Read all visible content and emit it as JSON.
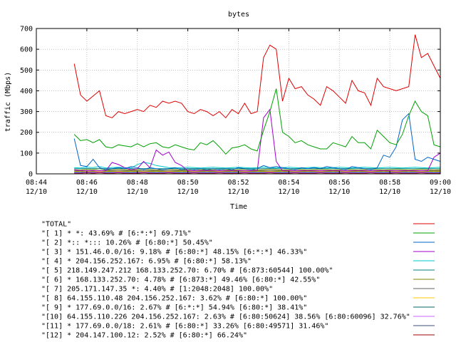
{
  "chart_data": {
    "type": "line",
    "title": "bytes",
    "xlabel": "Time",
    "ylabel": "traffic (Mbps)",
    "ylim": [
      0,
      700
    ],
    "yticks": [
      0,
      100,
      200,
      300,
      400,
      500,
      600,
      700
    ],
    "xlim": [
      "08:44",
      "09:00"
    ],
    "xticks": [
      {
        "time": "08:44",
        "date": "12/10"
      },
      {
        "time": "08:46",
        "date": "12/10"
      },
      {
        "time": "08:48",
        "date": "12/10"
      },
      {
        "time": "08:50",
        "date": "12/10"
      },
      {
        "time": "08:52",
        "date": "12/10"
      },
      {
        "time": "08:54",
        "date": "12/10"
      },
      {
        "time": "08:56",
        "date": "12/10"
      },
      {
        "time": "08:58",
        "date": "12/10"
      },
      {
        "time": "09:00",
        "date": "12/10"
      }
    ],
    "legend_position": "below",
    "x": [
      "08:45:30",
      "08:45:45",
      "08:46:00",
      "08:46:15",
      "08:46:30",
      "08:46:45",
      "08:47:00",
      "08:47:15",
      "08:47:30",
      "08:47:45",
      "08:48:00",
      "08:48:15",
      "08:48:30",
      "08:48:45",
      "08:49:00",
      "08:49:15",
      "08:49:30",
      "08:49:45",
      "08:50:00",
      "08:50:15",
      "08:50:30",
      "08:50:45",
      "08:51:00",
      "08:51:15",
      "08:51:30",
      "08:51:45",
      "08:52:00",
      "08:52:15",
      "08:52:30",
      "08:52:45",
      "08:53:00",
      "08:53:15",
      "08:53:30",
      "08:53:45",
      "08:54:00",
      "08:54:15",
      "08:54:30",
      "08:54:45",
      "08:55:00",
      "08:55:15",
      "08:55:30",
      "08:55:45",
      "08:56:00",
      "08:56:15",
      "08:56:30",
      "08:56:45",
      "08:57:00",
      "08:57:15",
      "08:57:30",
      "08:57:45",
      "08:58:00",
      "08:58:15",
      "08:58:30",
      "08:58:45",
      "08:59:00",
      "08:59:15",
      "08:59:30",
      "08:59:45",
      "09:00:00"
    ],
    "series": [
      {
        "name": "\"TOTAL\"",
        "color": "#e00000",
        "values": [
          530,
          380,
          350,
          375,
          400,
          280,
          270,
          300,
          290,
          300,
          310,
          300,
          330,
          320,
          350,
          340,
          350,
          340,
          300,
          290,
          310,
          300,
          280,
          300,
          270,
          310,
          290,
          340,
          290,
          300,
          560,
          620,
          600,
          350,
          460,
          410,
          420,
          380,
          360,
          330,
          420,
          400,
          370,
          340,
          450,
          400,
          390,
          330,
          460,
          420,
          410,
          400,
          410,
          420,
          670,
          560,
          580,
          520,
          460
        ]
      },
      {
        "name": "\"[ 1] * *: 43.69% # [6:*:*] 69.71%\"",
        "color": "#00a000",
        "values": [
          190,
          160,
          165,
          150,
          165,
          130,
          125,
          140,
          135,
          130,
          145,
          130,
          145,
          150,
          130,
          125,
          140,
          130,
          120,
          115,
          150,
          140,
          160,
          130,
          95,
          125,
          130,
          140,
          120,
          110,
          210,
          300,
          410,
          200,
          180,
          150,
          160,
          140,
          130,
          120,
          120,
          150,
          140,
          130,
          180,
          150,
          150,
          120,
          210,
          180,
          150,
          140,
          190,
          280,
          350,
          300,
          280,
          140,
          130
        ]
      },
      {
        "name": "\"[ 2] *:: *::: 10.26% # [6:80:*] 50.45%\"",
        "color": "#0064c8",
        "values": [
          170,
          40,
          35,
          70,
          30,
          20,
          25,
          30,
          25,
          35,
          30,
          20,
          30,
          25,
          20,
          25,
          30,
          20,
          25,
          20,
          25,
          20,
          25,
          20,
          25,
          20,
          30,
          25,
          20,
          25,
          40,
          30,
          35,
          30,
          25,
          20,
          30,
          25,
          30,
          25,
          35,
          30,
          25,
          20,
          35,
          30,
          25,
          20,
          30,
          90,
          80,
          130,
          260,
          290,
          70,
          60,
          80,
          70,
          60
        ]
      },
      {
        "name": "\"[ 3] * 151.46.0.0/16: 9.18% # [6:80:*] 48.15% [6:*:*] 46.33%\"",
        "color": "#a000c8",
        "values": [
          20,
          15,
          15,
          15,
          15,
          15,
          55,
          45,
          30,
          20,
          25,
          60,
          30,
          115,
          90,
          105,
          55,
          40,
          15,
          15,
          15,
          15,
          15,
          15,
          15,
          15,
          15,
          15,
          15,
          15,
          270,
          310,
          60,
          15,
          15,
          15,
          15,
          15,
          15,
          15,
          15,
          15,
          15,
          15,
          15,
          15,
          15,
          15,
          15,
          15,
          15,
          15,
          15,
          15,
          15,
          15,
          15,
          80,
          100
        ]
      },
      {
        "name": "\"[ 4] * 204.156.252.167: 6.95% # [6:80:*] 58.13%\"",
        "color": "#00c8c8",
        "values": [
          30,
          28,
          32,
          30,
          35,
          28,
          30,
          32,
          30,
          28,
          45,
          55,
          50,
          40,
          35,
          30,
          28,
          30,
          32,
          30,
          28,
          30,
          32,
          30,
          28,
          30,
          32,
          30,
          28,
          30,
          32,
          30,
          28,
          30,
          32,
          30,
          28,
          30,
          32,
          30,
          28,
          30,
          32,
          30,
          28,
          30,
          32,
          30,
          28,
          30,
          32,
          30,
          28,
          30,
          32,
          30,
          28,
          30,
          32
        ]
      },
      {
        "name": "\"[ 5] 218.149.247.212 168.133.252.70: 6.70% # [6:873:60544] 100.00%\"",
        "color": "#008080",
        "values": [
          25,
          25,
          25,
          25,
          25,
          25,
          25,
          25,
          25,
          25,
          25,
          25,
          25,
          25,
          25,
          25,
          25,
          25,
          25,
          25,
          25,
          25,
          25,
          25,
          25,
          25,
          25,
          25,
          25,
          25,
          25,
          25,
          25,
          25,
          25,
          25,
          25,
          25,
          25,
          25,
          25,
          25,
          25,
          25,
          25,
          25,
          25,
          25,
          25,
          25,
          25,
          25,
          25,
          25,
          25,
          25,
          25,
          25,
          25
        ]
      },
      {
        "name": "\"[ 6] * 168.133.252.70: 4.78% # [6:873:*] 49.46% [6:80:*] 42.55%\"",
        "color": "#808000",
        "values": [
          20,
          18,
          22,
          20,
          25,
          18,
          20,
          22,
          20,
          18,
          20,
          22,
          20,
          18,
          20,
          22,
          20,
          18,
          20,
          22,
          20,
          18,
          20,
          22,
          20,
          18,
          20,
          22,
          20,
          18,
          20,
          22,
          20,
          18,
          20,
          22,
          20,
          18,
          20,
          22,
          20,
          18,
          20,
          22,
          20,
          18,
          20,
          22,
          20,
          18,
          20,
          22,
          20,
          18,
          20,
          22,
          20,
          18,
          20
        ]
      },
      {
        "name": "\"[ 7] 205.171.147.35 *: 4.40% # [1:2048:2048] 100.00%\"",
        "color": "#606060",
        "values": [
          15,
          15,
          15,
          15,
          15,
          15,
          15,
          15,
          15,
          15,
          15,
          15,
          15,
          15,
          15,
          15,
          15,
          15,
          15,
          15,
          15,
          15,
          15,
          15,
          15,
          15,
          15,
          15,
          15,
          15,
          15,
          15,
          15,
          15,
          15,
          15,
          15,
          15,
          15,
          15,
          15,
          15,
          15,
          15,
          15,
          15,
          15,
          15,
          15,
          15,
          15,
          15,
          15,
          15,
          15,
          15,
          15,
          15,
          15
        ]
      },
      {
        "name": "\"[ 8] 64.155.110.48 204.156.252.167: 3.62% # [6:80:*] 100.00%\"",
        "color": "#ffc800",
        "values": [
          12,
          12,
          12,
          12,
          12,
          12,
          12,
          12,
          12,
          12,
          12,
          12,
          12,
          12,
          12,
          12,
          12,
          12,
          12,
          12,
          12,
          12,
          12,
          12,
          12,
          12,
          12,
          12,
          12,
          12,
          12,
          12,
          12,
          12,
          12,
          12,
          12,
          12,
          12,
          12,
          12,
          12,
          12,
          12,
          12,
          12,
          12,
          12,
          12,
          12,
          12,
          12,
          12,
          12,
          12,
          12,
          12,
          12,
          12
        ]
      },
      {
        "name": "\"[ 9] * 177.69.0.0/16: 2.67% # [6:*:*] 54.94% [6:80:*] 38.41%\"",
        "color": "#006464",
        "values": [
          10,
          8,
          12,
          10,
          15,
          8,
          10,
          12,
          10,
          8,
          10,
          12,
          10,
          8,
          10,
          12,
          10,
          8,
          10,
          12,
          10,
          8,
          10,
          12,
          10,
          8,
          10,
          12,
          10,
          8,
          10,
          12,
          10,
          8,
          10,
          12,
          10,
          8,
          10,
          12,
          10,
          8,
          10,
          12,
          10,
          8,
          10,
          12,
          10,
          8,
          10,
          12,
          10,
          8,
          10,
          12,
          10,
          8,
          10
        ]
      },
      {
        "name": "\"[10] 64.155.110.226 204.156.252.167: 2.63% # [6:80:50624] 38.56% [6:80:60096] 32.76%\"",
        "color": "#c864ff",
        "values": [
          5,
          5,
          8,
          5,
          10,
          5,
          5,
          8,
          5,
          5,
          5,
          8,
          5,
          5,
          5,
          8,
          5,
          5,
          5,
          8,
          5,
          5,
          5,
          8,
          5,
          5,
          5,
          8,
          5,
          5,
          5,
          8,
          5,
          5,
          5,
          8,
          5,
          5,
          5,
          8,
          5,
          5,
          5,
          8,
          5,
          5,
          5,
          8,
          5,
          5,
          5,
          8,
          5,
          5,
          5,
          8,
          5,
          5,
          5
        ]
      },
      {
        "name": "\"[11] * 177.69.0.0/18: 2.61% # [6:80:*] 33.26% [6:80:49571] 31.46%\"",
        "color": "#3c5078",
        "values": [
          8,
          6,
          10,
          8,
          12,
          6,
          8,
          10,
          8,
          6,
          8,
          10,
          8,
          6,
          8,
          10,
          8,
          6,
          8,
          10,
          8,
          6,
          8,
          10,
          8,
          6,
          8,
          10,
          8,
          6,
          8,
          10,
          8,
          6,
          8,
          10,
          8,
          6,
          8,
          10,
          8,
          6,
          8,
          10,
          8,
          6,
          8,
          10,
          8,
          6,
          8,
          10,
          8,
          6,
          8,
          10,
          8,
          6,
          8
        ]
      },
      {
        "name": "\"[12] * 204.147.100.12: 2.52% # [6:80:*] 66.24%\"",
        "color": "#a00000",
        "values": [
          3,
          3,
          5,
          3,
          6,
          3,
          3,
          5,
          3,
          3,
          3,
          5,
          3,
          3,
          3,
          5,
          3,
          3,
          3,
          5,
          3,
          3,
          3,
          5,
          3,
          3,
          3,
          5,
          3,
          3,
          3,
          5,
          3,
          3,
          3,
          5,
          3,
          3,
          3,
          5,
          3,
          3,
          3,
          5,
          3,
          3,
          3,
          5,
          3,
          3,
          3,
          5,
          3,
          3,
          3,
          5,
          3,
          3,
          3
        ]
      }
    ]
  }
}
